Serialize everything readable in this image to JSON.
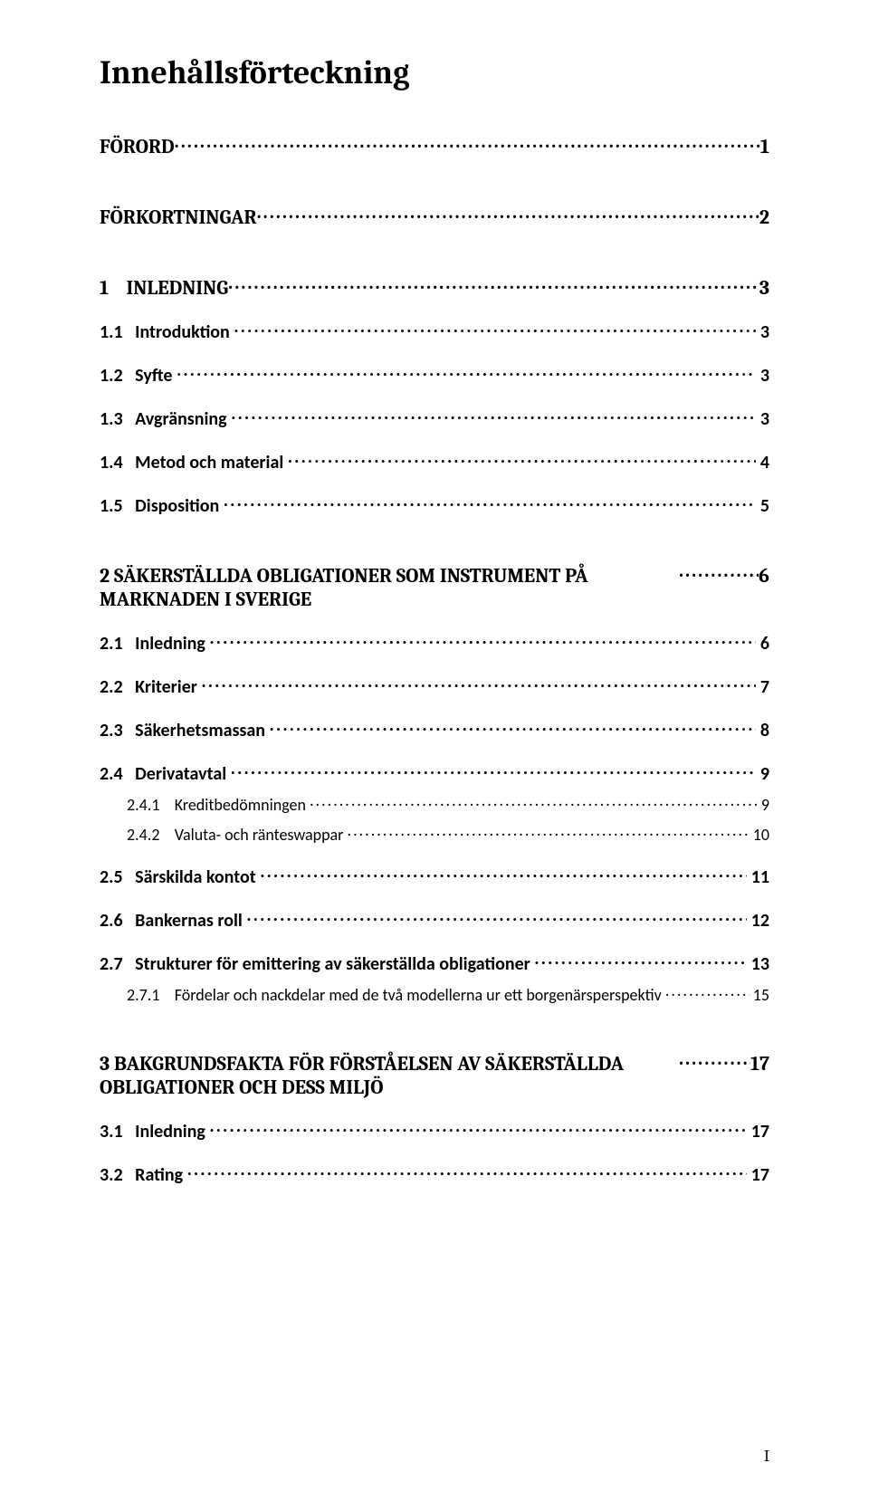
{
  "title": "Innehållsförteckning",
  "page_number": "I",
  "typography": {
    "title_font": "Cambria",
    "title_size_pt": 27,
    "title_weight": 700,
    "heading_font": "Cambria",
    "body_font": "Calibri",
    "text_color": "#000000",
    "background_color": "#ffffff"
  },
  "toc": [
    {
      "level": 0,
      "num": "",
      "title": "FÖRORD",
      "page": "1"
    },
    {
      "level": 0,
      "num": "",
      "title": "FÖRKORTNINGAR",
      "page": "2"
    },
    {
      "level": 0,
      "num": "1",
      "title": "INLEDNING",
      "page": "3"
    },
    {
      "level": 1,
      "num": "1.1",
      "title": "Introduktion",
      "page": "3"
    },
    {
      "level": 1,
      "num": "1.2",
      "title": "Syfte",
      "page": "3"
    },
    {
      "level": 1,
      "num": "1.3",
      "title": "Avgränsning",
      "page": "3"
    },
    {
      "level": 1,
      "num": "1.4",
      "title": "Metod och material",
      "page": "4"
    },
    {
      "level": 1,
      "num": "1.5",
      "title": "Disposition",
      "page": "5"
    },
    {
      "level": 0,
      "num": "2",
      "title": "SÄKERSTÄLLDA OBLIGATIONER SOM INSTRUMENT PÅ MARKNADEN I SVERIGE",
      "page": "6",
      "multiline": true
    },
    {
      "level": 1,
      "num": "2.1",
      "title": "Inledning",
      "page": "6"
    },
    {
      "level": 1,
      "num": "2.2",
      "title": "Kriterier",
      "page": "7"
    },
    {
      "level": 1,
      "num": "2.3",
      "title": "Säkerhetsmassan",
      "page": "8"
    },
    {
      "level": 1,
      "num": "2.4",
      "title": "Derivatavtal",
      "page": "9"
    },
    {
      "level": 2,
      "num": "2.4.1",
      "title": "Kreditbedömningen",
      "page": "9"
    },
    {
      "level": 2,
      "num": "2.4.2",
      "title": "Valuta- och ränteswappar",
      "page": "10"
    },
    {
      "level": 1,
      "num": "2.5",
      "title": "Särskilda kontot",
      "page": "11"
    },
    {
      "level": 1,
      "num": "2.6",
      "title": "Bankernas roll",
      "page": "12"
    },
    {
      "level": 1,
      "num": "2.7",
      "title": "Strukturer för emittering av säkerställda obligationer",
      "page": "13"
    },
    {
      "level": 2,
      "num": "2.7.1",
      "title": "Fördelar och nackdelar med de två modellerna ur ett borgenärsperspektiv",
      "page": "15"
    },
    {
      "level": 0,
      "num": "3",
      "title": "BAKGRUNDSFAKTA FÖR FÖRSTÅELSEN AV SÄKERSTÄLLDA OBLIGATIONER OCH DESS MILJÖ",
      "page": "17",
      "multiline": true
    },
    {
      "level": 1,
      "num": "3.1",
      "title": "Inledning",
      "page": "17"
    },
    {
      "level": 1,
      "num": "3.2",
      "title": "Rating",
      "page": "17"
    }
  ]
}
